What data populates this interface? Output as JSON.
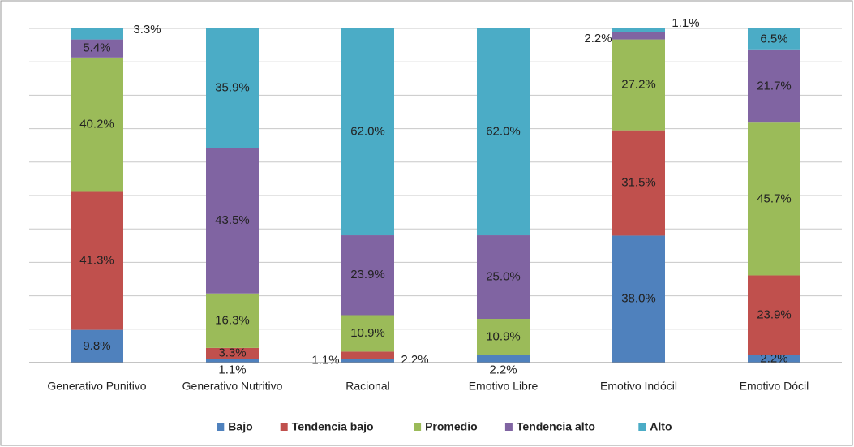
{
  "chart_data": {
    "type": "stacked_bar",
    "categories": [
      "Generativo Punitivo",
      "Generativo Nutritivo",
      "Racional",
      "Emotivo Libre",
      "Emotivo Indócil",
      "Emotivo Dócil"
    ],
    "series": [
      {
        "name": "Bajo",
        "color": "#4f81bd",
        "values": [
          9.8,
          1.1,
          1.1,
          2.2,
          38.0,
          2.2
        ],
        "value_labels": [
          "9.8%",
          "1.1%",
          "1.1%",
          "2.2%",
          "38.0%",
          "2.2%"
        ]
      },
      {
        "name": "Tendencia bajo",
        "color": "#c0504d",
        "values": [
          41.3,
          3.3,
          2.2,
          0,
          31.5,
          23.9
        ],
        "value_labels": [
          "41.3%",
          "3.3%",
          "2.2%",
          null,
          "31.5%",
          "23.9%"
        ]
      },
      {
        "name": "Promedio",
        "color": "#9bbb59",
        "values": [
          40.2,
          16.3,
          10.9,
          10.9,
          27.2,
          45.7
        ],
        "value_labels": [
          "40.2%",
          "16.3%",
          "10.9%",
          "10.9%",
          "27.2%",
          "45.7%"
        ]
      },
      {
        "name": "Tendencia alto",
        "color": "#8064a2",
        "values": [
          5.4,
          43.5,
          23.9,
          25.0,
          2.2,
          21.7
        ],
        "value_labels": [
          "5.4%",
          "43.5%",
          "23.9%",
          "25.0%",
          "2.2%",
          "21.7%"
        ]
      },
      {
        "name": "Alto",
        "color": "#4bacc6",
        "values": [
          3.3,
          35.9,
          62.0,
          62.0,
          1.1,
          6.5
        ],
        "value_labels": [
          "3.3%",
          "35.9%",
          "62.0%",
          "62.0%",
          "1.1%",
          "6.5%"
        ]
      }
    ],
    "ylim": [
      0,
      100
    ],
    "yticks": [
      0,
      10,
      20,
      30,
      40,
      50,
      60,
      70,
      80,
      90,
      100
    ],
    "grid": true,
    "legend": "bottom"
  }
}
